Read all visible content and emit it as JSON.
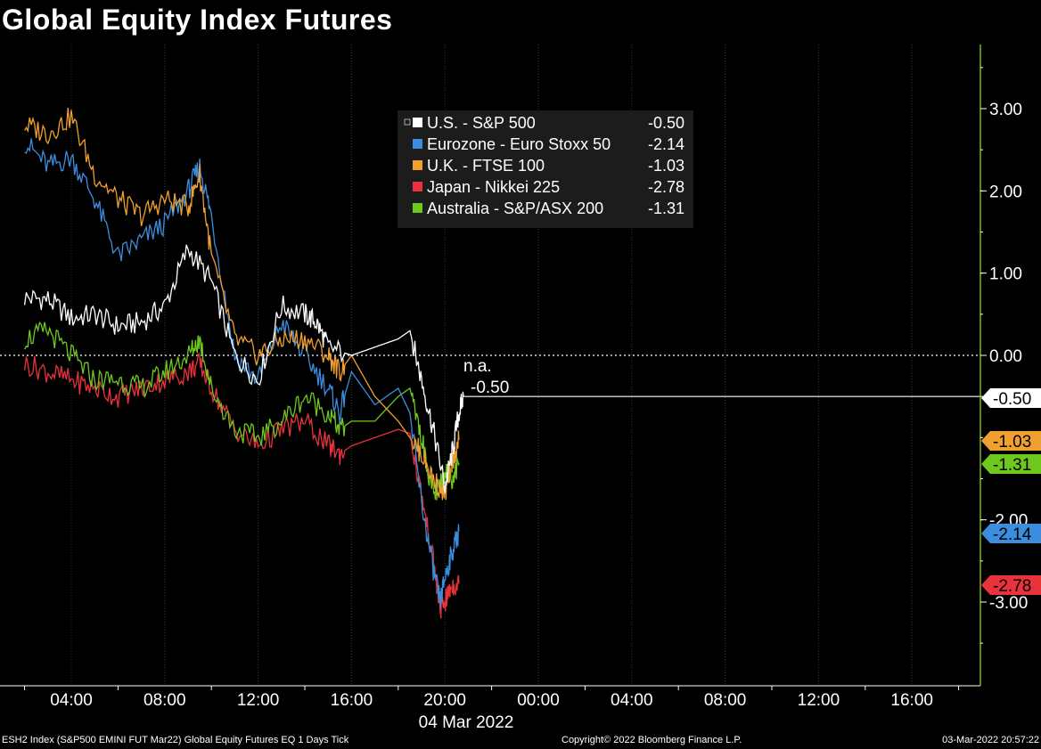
{
  "title": "Global Equity Index Futures",
  "chart_data": {
    "type": "line",
    "title": "Global Equity Index Futures",
    "x_range": [
      "03 Mar 2022 02:00",
      "05 Mar 2022 19:00"
    ],
    "x_ticks": [
      "04:00",
      "08:00",
      "12:00",
      "16:00",
      "20:00",
      "00:00",
      "04:00",
      "08:00",
      "12:00",
      "16:00"
    ],
    "x_date_label": "04 Mar 2022",
    "y_ticks": [
      "3.00",
      "2.00",
      "1.00",
      "0.00",
      "-3.00"
    ],
    "y_tick_partial": "-2.00",
    "ylim": [
      -4.0,
      3.8
    ],
    "zero_line": 0,
    "grid": "vertical",
    "legend_position": "top-center",
    "annotation_na": "n.a.",
    "annotation_last": "-0.50",
    "series": [
      {
        "name": "U.S. - S&P 500",
        "last": "-0.50",
        "color": "#ffffff",
        "x": [
          2,
          3,
          4,
          5,
          6,
          7,
          8,
          9,
          10,
          11,
          12,
          13,
          14,
          14.5,
          15,
          16,
          17,
          18,
          18.5,
          19,
          19.5,
          20,
          20.3,
          20.6,
          20.8
        ],
        "y": [
          0.7,
          0.68,
          0.45,
          0.5,
          0.35,
          0.4,
          0.6,
          1.3,
          0.9,
          0.0,
          -0.3,
          0.6,
          0.5,
          0.4,
          0.1,
          0.0,
          0.1,
          0.2,
          0.3,
          -0.3,
          -0.9,
          -1.6,
          -1.2,
          -0.7,
          -0.5
        ]
      },
      {
        "name": "Eurozone - Euro Stoxx 50",
        "last": "-2.14",
        "color": "#3c8dde",
        "x": [
          2,
          3,
          4,
          5,
          6,
          7,
          8,
          9,
          9.5,
          10,
          11,
          12,
          13,
          14,
          15,
          15.5,
          16,
          17,
          18,
          18.5,
          19,
          19.5,
          19.8,
          20,
          20.3,
          20.6
        ],
        "y": [
          2.6,
          2.3,
          2.4,
          1.9,
          1.2,
          1.4,
          1.6,
          2.0,
          2.3,
          1.7,
          0.0,
          -0.3,
          0.4,
          0.0,
          -0.4,
          -0.7,
          -0.2,
          -0.6,
          -0.4,
          -0.7,
          -1.8,
          -2.6,
          -3.0,
          -2.7,
          -2.4,
          -2.14
        ]
      },
      {
        "name": "U.K. - FTSE 100",
        "last": "-1.03",
        "color": "#f0a030",
        "x": [
          2,
          3,
          4,
          5,
          6,
          7,
          8,
          9,
          9.5,
          10,
          11,
          12,
          13,
          14,
          15,
          15.5,
          16,
          17,
          18,
          18.5,
          19,
          19.5,
          20,
          20.3,
          20.6
        ],
        "y": [
          2.8,
          2.7,
          2.9,
          2.2,
          1.9,
          1.7,
          1.9,
          1.8,
          2.2,
          1.2,
          0.2,
          0.0,
          0.2,
          0.2,
          0.0,
          -0.2,
          0.0,
          -0.5,
          -0.8,
          -1.0,
          -1.2,
          -1.5,
          -1.7,
          -1.3,
          -1.03
        ]
      },
      {
        "name": "Japan - Nikkei 225",
        "last": "-2.78",
        "color": "#e8323c",
        "x": [
          2,
          3,
          4,
          5,
          6,
          7,
          8,
          9,
          9.5,
          10,
          11,
          12,
          13,
          14,
          15,
          15.5,
          16,
          17,
          18,
          18.5,
          19,
          19.5,
          19.8,
          20,
          20.3,
          20.6
        ],
        "y": [
          -0.1,
          -0.2,
          -0.3,
          -0.4,
          -0.5,
          -0.4,
          -0.3,
          -0.2,
          -0.1,
          -0.4,
          -0.9,
          -1.1,
          -0.9,
          -0.8,
          -1.1,
          -1.2,
          -1.1,
          -1.0,
          -0.9,
          -0.95,
          -1.7,
          -2.5,
          -3.1,
          -3.0,
          -2.8,
          -2.78
        ]
      },
      {
        "name": "Australia - S&P/ASX 200",
        "last": "-1.31",
        "color": "#6ec81e",
        "x": [
          2,
          3,
          4,
          5,
          6,
          7,
          8,
          9,
          9.5,
          10,
          11,
          12,
          13,
          14,
          15,
          15.5,
          16,
          17,
          18,
          18.5,
          19,
          19.5,
          19.8,
          20,
          20.3,
          20.6
        ],
        "y": [
          0.2,
          0.3,
          0.0,
          -0.3,
          -0.3,
          -0.4,
          -0.2,
          0.0,
          0.2,
          -0.4,
          -0.9,
          -1.0,
          -0.8,
          -0.5,
          -0.7,
          -0.9,
          -0.8,
          -0.8,
          -0.5,
          -0.4,
          -1.0,
          -1.7,
          -1.6,
          -1.4,
          -1.5,
          -1.31
        ]
      }
    ]
  },
  "footer": {
    "left": "ESH2 Index (S&P500 EMINI FUT  Mar22) Global Equity Futures EQ 1 Days  Tick",
    "center": "Copyright© 2022 Bloomberg Finance L.P.",
    "right": "03-Mar-2022 20:57:22"
  }
}
